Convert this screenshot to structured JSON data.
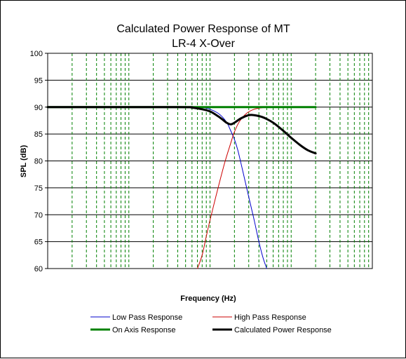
{
  "chart_data": {
    "type": "line",
    "title": "Calculated Power Response of MT",
    "subtitle": "LR-4 X-Over",
    "xlabel": "Frequency (Hz)",
    "ylabel": "SPL (dB)",
    "x_scale": "log",
    "xlim": [
      10,
      100000
    ],
    "ylim": [
      60,
      100
    ],
    "y_ticks": [
      "60",
      "65",
      "70",
      "75",
      "80",
      "85",
      "90",
      "95",
      "100"
    ],
    "grid": "on",
    "legend_position": "bottom",
    "series": [
      {
        "name": "Low Pass Response",
        "color": "#0000cc",
        "stroke": 1,
        "points": [
          [
            10,
            90
          ],
          [
            500,
            90
          ],
          [
            800,
            89.9
          ],
          [
            1000,
            89.6
          ],
          [
            1300,
            88.7
          ],
          [
            1600,
            87.2
          ],
          [
            1800,
            85.6
          ],
          [
            2000,
            84.0
          ],
          [
            2200,
            82.0
          ],
          [
            2500,
            78.5
          ],
          [
            3000,
            73.3
          ],
          [
            3500,
            69.0
          ],
          [
            4000,
            65.0
          ],
          [
            4500,
            62.0
          ],
          [
            5000,
            60.0
          ]
        ]
      },
      {
        "name": "High Pass Response",
        "color": "#cc0000",
        "stroke": 1,
        "points": [
          [
            700,
            60.0
          ],
          [
            800,
            62.5
          ],
          [
            900,
            66.0
          ],
          [
            1000,
            69.0
          ],
          [
            1200,
            73.8
          ],
          [
            1500,
            79.4
          ],
          [
            1800,
            83.3
          ],
          [
            2000,
            85.4
          ],
          [
            2300,
            87.3
          ],
          [
            2800,
            88.8
          ],
          [
            3500,
            89.6
          ],
          [
            4500,
            89.9
          ],
          [
            6000,
            90.0
          ],
          [
            20000,
            90.0
          ]
        ]
      },
      {
        "name": "On Axis Response",
        "color": "#008000",
        "stroke": 3,
        "points": [
          [
            10,
            90
          ],
          [
            20000,
            90
          ]
        ]
      },
      {
        "name": "Calculated Power Response",
        "color": "#000000",
        "stroke": 3,
        "points": [
          [
            10,
            90
          ],
          [
            400,
            90
          ],
          [
            600,
            89.9
          ],
          [
            800,
            89.6
          ],
          [
            1000,
            89.2
          ],
          [
            1200,
            88.5
          ],
          [
            1400,
            87.8
          ],
          [
            1600,
            87.1
          ],
          [
            1800,
            86.8
          ],
          [
            2000,
            87.1
          ],
          [
            2400,
            87.9
          ],
          [
            3000,
            88.5
          ],
          [
            3500,
            88.5
          ],
          [
            4500,
            88.1
          ],
          [
            6000,
            87.1
          ],
          [
            8000,
            85.6
          ],
          [
            10000,
            84.3
          ],
          [
            13000,
            82.9
          ],
          [
            16000,
            82.0
          ],
          [
            20000,
            81.4
          ]
        ]
      }
    ]
  }
}
